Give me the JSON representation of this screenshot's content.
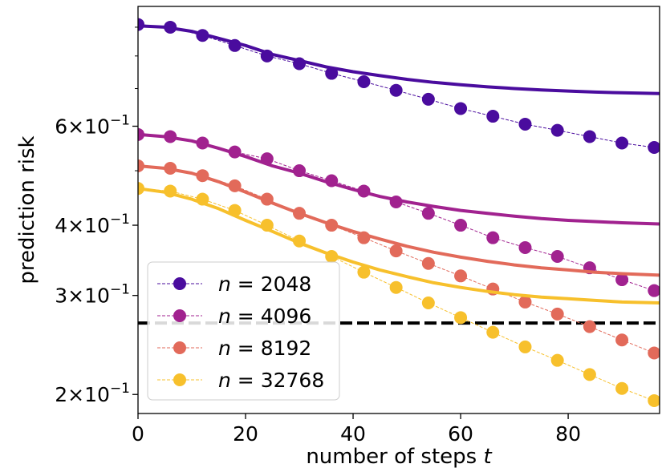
{
  "chart_data": {
    "type": "line",
    "title": "",
    "xlabel": "number of steps",
    "xlabel_var": "t",
    "ylabel": "prediction risk",
    "yscale": "log",
    "xlim": [
      0,
      97
    ],
    "ylim": [
      0.185,
      0.98
    ],
    "x_ticks": [
      0,
      20,
      40,
      60,
      80
    ],
    "x_tick_labels": [
      "0",
      "20",
      "40",
      "60",
      "80"
    ],
    "y_major_ticks": [
      {
        "value": 0.2,
        "mantissa": "2",
        "exp": "−1"
      },
      {
        "value": 0.3,
        "mantissa": "3",
        "exp": "−1"
      },
      {
        "value": 0.4,
        "mantissa": "4",
        "exp": "−1"
      },
      {
        "value": 0.6,
        "mantissa": "6",
        "exp": "−1"
      }
    ],
    "y_minor_ticks": [
      0.5,
      0.7,
      0.8,
      0.9
    ],
    "reference_line": {
      "y": 0.268,
      "style": "dashed",
      "color": "#000000"
    },
    "legend_position": "lower-left",
    "x": [
      0,
      6,
      12,
      18,
      24,
      30,
      36,
      42,
      48,
      54,
      60,
      66,
      72,
      78,
      84,
      90,
      96
    ],
    "series": [
      {
        "name": "n = 2048",
        "n_label": "n",
        "n_value": "2048",
        "color": "#4a0c9e",
        "empirical": [
          0.91,
          0.9,
          0.87,
          0.835,
          0.8,
          0.775,
          0.745,
          0.72,
          0.695,
          0.67,
          0.645,
          0.625,
          0.605,
          0.59,
          0.575,
          0.56,
          0.55
        ],
        "theory_x": [
          0,
          5,
          10,
          15,
          20,
          25,
          30,
          35,
          40,
          45,
          50,
          55,
          60,
          65,
          70,
          75,
          80,
          85,
          90,
          97
        ],
        "theory_y": [
          0.905,
          0.9,
          0.885,
          0.86,
          0.835,
          0.805,
          0.785,
          0.765,
          0.75,
          0.738,
          0.727,
          0.718,
          0.711,
          0.705,
          0.7,
          0.696,
          0.693,
          0.69,
          0.688,
          0.686
        ]
      },
      {
        "name": "n = 4096",
        "n_label": "n",
        "n_value": "4096",
        "color": "#a1228f",
        "empirical": [
          0.58,
          0.575,
          0.56,
          0.54,
          0.525,
          0.5,
          0.48,
          0.46,
          0.44,
          0.42,
          0.4,
          0.38,
          0.365,
          0.352,
          0.336,
          0.32,
          0.306
        ],
        "theory_x": [
          0,
          5,
          10,
          15,
          20,
          25,
          30,
          35,
          40,
          45,
          50,
          55,
          60,
          65,
          70,
          75,
          80,
          85,
          90,
          97
        ],
        "theory_y": [
          0.58,
          0.575,
          0.565,
          0.548,
          0.53,
          0.51,
          0.495,
          0.478,
          0.463,
          0.45,
          0.44,
          0.432,
          0.425,
          0.42,
          0.415,
          0.411,
          0.408,
          0.406,
          0.404,
          0.402
        ]
      },
      {
        "name": "n = 8192",
        "n_label": "n",
        "n_value": "8192",
        "color": "#e26a5a",
        "empirical": [
          0.51,
          0.505,
          0.49,
          0.47,
          0.445,
          0.42,
          0.4,
          0.38,
          0.36,
          0.342,
          0.325,
          0.308,
          0.292,
          0.278,
          0.264,
          0.25,
          0.237
        ],
        "theory_x": [
          0,
          5,
          10,
          15,
          20,
          25,
          30,
          35,
          40,
          45,
          50,
          55,
          60,
          65,
          70,
          75,
          80,
          85,
          90,
          97
        ],
        "theory_y": [
          0.51,
          0.505,
          0.495,
          0.478,
          0.458,
          0.438,
          0.42,
          0.404,
          0.39,
          0.378,
          0.367,
          0.358,
          0.351,
          0.345,
          0.34,
          0.336,
          0.333,
          0.33,
          0.328,
          0.326
        ]
      },
      {
        "name": "n = 32768",
        "n_label": "n",
        "n_value": "32768",
        "color": "#f7c02c",
        "empirical": [
          0.465,
          0.46,
          0.445,
          0.425,
          0.4,
          0.375,
          0.352,
          0.33,
          0.31,
          0.291,
          0.274,
          0.258,
          0.243,
          0.23,
          0.217,
          0.205,
          0.195
        ],
        "theory_x": [
          0,
          5,
          10,
          15,
          20,
          25,
          30,
          35,
          40,
          45,
          50,
          55,
          60,
          65,
          70,
          75,
          80,
          85,
          90,
          97
        ],
        "theory_y": [
          0.465,
          0.458,
          0.445,
          0.428,
          0.408,
          0.39,
          0.372,
          0.357,
          0.344,
          0.333,
          0.324,
          0.316,
          0.31,
          0.305,
          0.301,
          0.298,
          0.296,
          0.294,
          0.292,
          0.291
        ]
      }
    ]
  }
}
